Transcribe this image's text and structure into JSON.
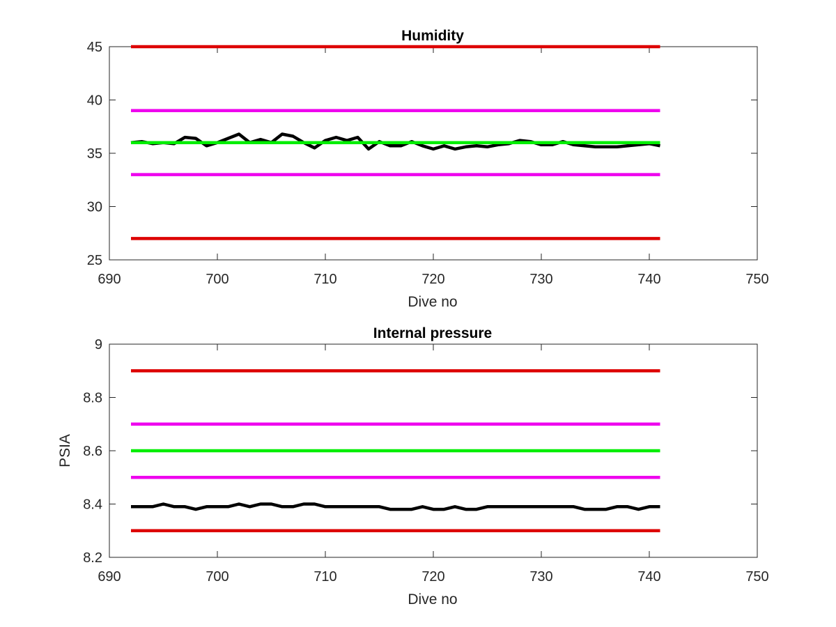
{
  "chart_data": [
    {
      "type": "line",
      "title": "Humidity",
      "xlabel": "Dive no",
      "ylabel": "",
      "xlim": [
        690,
        750
      ],
      "ylim": [
        25,
        45
      ],
      "xticks": [
        690,
        700,
        710,
        720,
        730,
        740,
        750
      ],
      "yticks": [
        25,
        30,
        35,
        40,
        45
      ],
      "grid": false,
      "series": [
        {
          "color": "#000000",
          "x": [
            692,
            693,
            694,
            695,
            696,
            697,
            698,
            699,
            700,
            701,
            702,
            703,
            704,
            705,
            706,
            707,
            708,
            709,
            710,
            711,
            712,
            713,
            714,
            715,
            716,
            717,
            718,
            719,
            720,
            721,
            722,
            723,
            724,
            725,
            726,
            727,
            728,
            729,
            730,
            731,
            732,
            733,
            734,
            735,
            736,
            737,
            738,
            739,
            740,
            741
          ],
          "y": [
            36.0,
            36.1,
            35.9,
            36.0,
            35.9,
            36.5,
            36.4,
            35.7,
            36.0,
            36.4,
            36.8,
            36.0,
            36.3,
            36.0,
            36.8,
            36.6,
            36.0,
            35.5,
            36.2,
            36.5,
            36.2,
            36.5,
            35.4,
            36.1,
            35.7,
            35.7,
            36.1,
            35.7,
            35.4,
            35.7,
            35.4,
            35.6,
            35.7,
            35.6,
            35.8,
            35.9,
            36.2,
            36.1,
            35.8,
            35.8,
            36.1,
            35.8,
            35.7,
            35.6,
            35.6,
            35.6,
            35.7,
            35.8,
            35.9,
            35.7
          ]
        },
        {
          "color": "#dd0000",
          "x": [
            692,
            741
          ],
          "y": [
            45,
            45
          ]
        },
        {
          "color": "#ee00ee",
          "x": [
            692,
            741
          ],
          "y": [
            39,
            39
          ]
        },
        {
          "color": "#00ee00",
          "x": [
            692,
            741
          ],
          "y": [
            36,
            36
          ]
        },
        {
          "color": "#ee00ee",
          "x": [
            692,
            741
          ],
          "y": [
            33,
            33
          ]
        },
        {
          "color": "#dd0000",
          "x": [
            692,
            741
          ],
          "y": [
            27,
            27
          ]
        }
      ]
    },
    {
      "type": "line",
      "title": "Internal pressure",
      "xlabel": "Dive no",
      "ylabel": "PSIA",
      "xlim": [
        690,
        750
      ],
      "ylim": [
        8.2,
        9.0
      ],
      "xticks": [
        690,
        700,
        710,
        720,
        730,
        740,
        750
      ],
      "yticks": [
        8.2,
        8.4,
        8.6,
        8.8,
        9
      ],
      "ytick_labels": [
        "8.2",
        "8.4",
        "8.6",
        "8.8",
        "9"
      ],
      "grid": false,
      "series": [
        {
          "color": "#dd0000",
          "x": [
            692,
            741
          ],
          "y": [
            8.9,
            8.9
          ]
        },
        {
          "color": "#ee00ee",
          "x": [
            692,
            741
          ],
          "y": [
            8.7,
            8.7
          ]
        },
        {
          "color": "#00ee00",
          "x": [
            692,
            741
          ],
          "y": [
            8.6,
            8.6
          ]
        },
        {
          "color": "#ee00ee",
          "x": [
            692,
            741
          ],
          "y": [
            8.5,
            8.5
          ]
        },
        {
          "color": "#000000",
          "x": [
            692,
            693,
            694,
            695,
            696,
            697,
            698,
            699,
            700,
            701,
            702,
            703,
            704,
            705,
            706,
            707,
            708,
            709,
            710,
            711,
            712,
            713,
            714,
            715,
            716,
            717,
            718,
            719,
            720,
            721,
            722,
            723,
            724,
            725,
            726,
            727,
            728,
            729,
            730,
            731,
            732,
            733,
            734,
            735,
            736,
            737,
            738,
            739,
            740,
            741
          ],
          "y": [
            8.39,
            8.39,
            8.39,
            8.4,
            8.39,
            8.39,
            8.38,
            8.39,
            8.39,
            8.39,
            8.4,
            8.39,
            8.4,
            8.4,
            8.39,
            8.39,
            8.4,
            8.4,
            8.39,
            8.39,
            8.39,
            8.39,
            8.39,
            8.39,
            8.38,
            8.38,
            8.38,
            8.39,
            8.38,
            8.38,
            8.39,
            8.38,
            8.38,
            8.39,
            8.39,
            8.39,
            8.39,
            8.39,
            8.39,
            8.39,
            8.39,
            8.39,
            8.38,
            8.38,
            8.38,
            8.39,
            8.39,
            8.38,
            8.39,
            8.39
          ]
        },
        {
          "color": "#dd0000",
          "x": [
            692,
            741
          ],
          "y": [
            8.3,
            8.3
          ]
        }
      ]
    }
  ]
}
